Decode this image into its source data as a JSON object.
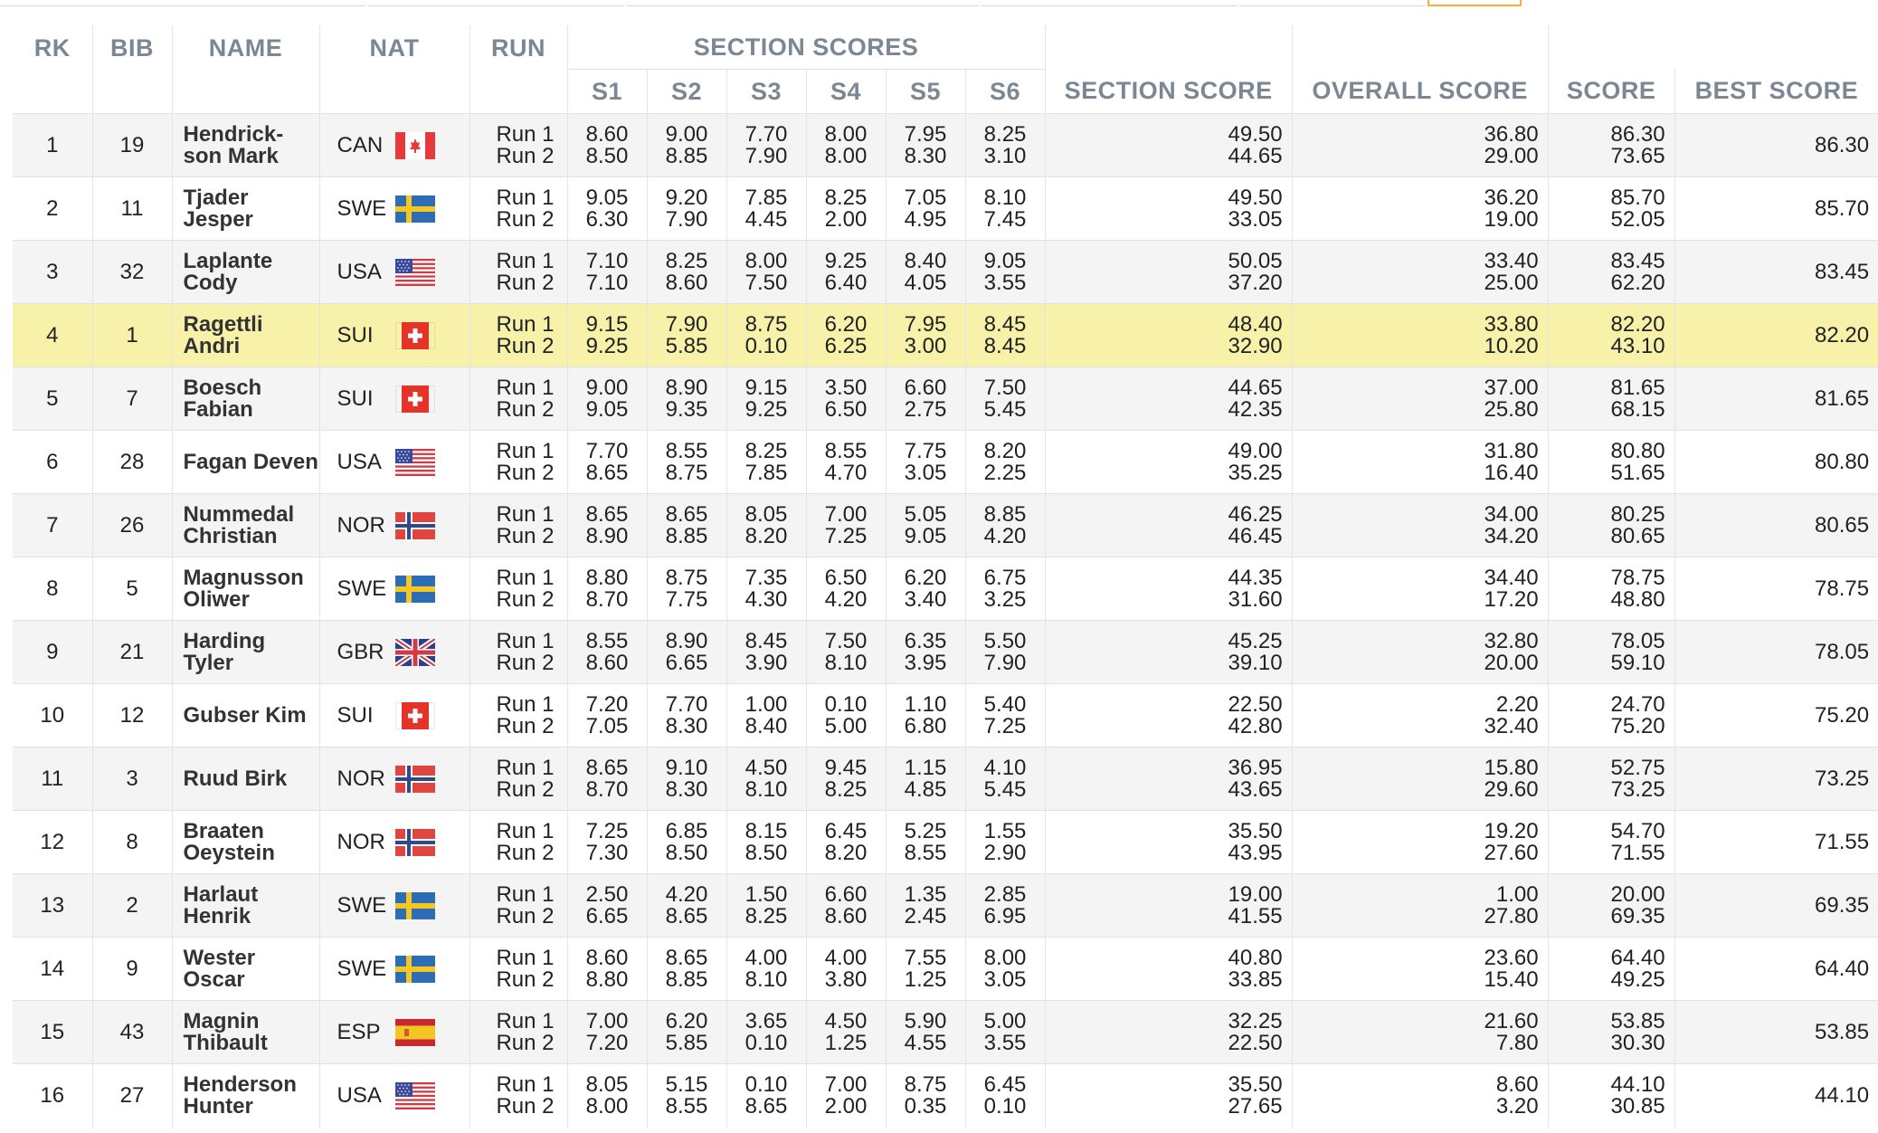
{
  "colors": {
    "highlight_row": "#f7f1a9",
    "header_text": "#7b8794",
    "active_tab": "#f2b233"
  },
  "header": {
    "rk": "RK",
    "bib": "BIB",
    "name": "NAME",
    "nat": "NAT",
    "run": "RUN",
    "section_scores": "SECTION SCORES",
    "s1": "S1",
    "s2": "S2",
    "s3": "S3",
    "s4": "S4",
    "s5": "S5",
    "s6": "S6",
    "section_score": "SECTION SCORE",
    "overall_score": "OVERALL SCORE",
    "score": "SCORE",
    "best_score": "BEST SCORE"
  },
  "run_labels": [
    "Run 1",
    "Run 2"
  ],
  "rows": [
    {
      "rk": "1",
      "bib": "19",
      "name": "Hendrick-son Mark",
      "nat": "CAN",
      "flag": "can-flag-icon",
      "r1": [
        "8.60",
        "9.00",
        "7.70",
        "8.00",
        "7.95",
        "8.25",
        "49.50",
        "36.80",
        "86.30"
      ],
      "r2": [
        "8.50",
        "8.85",
        "7.90",
        "8.00",
        "8.30",
        "3.10",
        "44.65",
        "29.00",
        "73.65"
      ],
      "best": "86.30"
    },
    {
      "rk": "2",
      "bib": "11",
      "name": "Tjader Jesper",
      "nat": "SWE",
      "flag": "swe-flag-icon",
      "r1": [
        "9.05",
        "9.20",
        "7.85",
        "8.25",
        "7.05",
        "8.10",
        "49.50",
        "36.20",
        "85.70"
      ],
      "r2": [
        "6.30",
        "7.90",
        "4.45",
        "2.00",
        "4.95",
        "7.45",
        "33.05",
        "19.00",
        "52.05"
      ],
      "best": "85.70"
    },
    {
      "rk": "3",
      "bib": "32",
      "name": "Laplante Cody",
      "nat": "USA",
      "flag": "usa-flag-icon",
      "r1": [
        "7.10",
        "8.25",
        "8.00",
        "9.25",
        "8.40",
        "9.05",
        "50.05",
        "33.40",
        "83.45"
      ],
      "r2": [
        "7.10",
        "8.60",
        "7.50",
        "6.40",
        "4.05",
        "3.55",
        "37.20",
        "25.00",
        "62.20"
      ],
      "best": "83.45"
    },
    {
      "rk": "4",
      "bib": "1",
      "name": "Ragettli Andri",
      "nat": "SUI",
      "flag": "sui-flag-icon",
      "highlight": true,
      "r1": [
        "9.15",
        "7.90",
        "8.75",
        "6.20",
        "7.95",
        "8.45",
        "48.40",
        "33.80",
        "82.20"
      ],
      "r2": [
        "9.25",
        "5.85",
        "0.10",
        "6.25",
        "3.00",
        "8.45",
        "32.90",
        "10.20",
        "43.10"
      ],
      "best": "82.20"
    },
    {
      "rk": "5",
      "bib": "7",
      "name": "Boesch Fabian",
      "nat": "SUI",
      "flag": "sui-flag-icon",
      "r1": [
        "9.00",
        "8.90",
        "9.15",
        "3.50",
        "6.60",
        "7.50",
        "44.65",
        "37.00",
        "81.65"
      ],
      "r2": [
        "9.05",
        "9.35",
        "9.25",
        "6.50",
        "2.75",
        "5.45",
        "42.35",
        "25.80",
        "68.15"
      ],
      "best": "81.65"
    },
    {
      "rk": "6",
      "bib": "28",
      "name": "Fagan Deven",
      "nat": "USA",
      "flag": "usa-flag-icon",
      "r1": [
        "7.70",
        "8.55",
        "8.25",
        "8.55",
        "7.75",
        "8.20",
        "49.00",
        "31.80",
        "80.80"
      ],
      "r2": [
        "8.65",
        "8.75",
        "7.85",
        "4.70",
        "3.05",
        "2.25",
        "35.25",
        "16.40",
        "51.65"
      ],
      "best": "80.80"
    },
    {
      "rk": "7",
      "bib": "26",
      "name": "Nummedal Christian",
      "nat": "NOR",
      "flag": "nor-flag-icon",
      "r1": [
        "8.65",
        "8.65",
        "8.05",
        "7.00",
        "5.05",
        "8.85",
        "46.25",
        "34.00",
        "80.25"
      ],
      "r2": [
        "8.90",
        "8.85",
        "8.20",
        "7.25",
        "9.05",
        "4.20",
        "46.45",
        "34.20",
        "80.65"
      ],
      "best": "80.65"
    },
    {
      "rk": "8",
      "bib": "5",
      "name": "Magnusson Oliwer",
      "nat": "SWE",
      "flag": "swe-flag-icon",
      "r1": [
        "8.80",
        "8.75",
        "7.35",
        "6.50",
        "6.20",
        "6.75",
        "44.35",
        "34.40",
        "78.75"
      ],
      "r2": [
        "8.70",
        "7.75",
        "4.30",
        "4.20",
        "3.40",
        "3.25",
        "31.60",
        "17.20",
        "48.80"
      ],
      "best": "78.75"
    },
    {
      "rk": "9",
      "bib": "21",
      "name": "Harding Tyler",
      "nat": "GBR",
      "flag": "gbr-flag-icon",
      "r1": [
        "8.55",
        "8.90",
        "8.45",
        "7.50",
        "6.35",
        "5.50",
        "45.25",
        "32.80",
        "78.05"
      ],
      "r2": [
        "8.60",
        "6.65",
        "3.90",
        "8.10",
        "3.95",
        "7.90",
        "39.10",
        "20.00",
        "59.10"
      ],
      "best": "78.05"
    },
    {
      "rk": "10",
      "bib": "12",
      "name": "Gubser Kim",
      "nat": "SUI",
      "flag": "sui-flag-icon",
      "r1": [
        "7.20",
        "7.70",
        "1.00",
        "0.10",
        "1.10",
        "5.40",
        "22.50",
        "2.20",
        "24.70"
      ],
      "r2": [
        "7.05",
        "8.30",
        "8.40",
        "5.00",
        "6.80",
        "7.25",
        "42.80",
        "32.40",
        "75.20"
      ],
      "best": "75.20"
    },
    {
      "rk": "11",
      "bib": "3",
      "name": "Ruud Birk",
      "nat": "NOR",
      "flag": "nor-flag-icon",
      "r1": [
        "8.65",
        "9.10",
        "4.50",
        "9.45",
        "1.15",
        "4.10",
        "36.95",
        "15.80",
        "52.75"
      ],
      "r2": [
        "8.70",
        "8.30",
        "8.10",
        "8.25",
        "4.85",
        "5.45",
        "43.65",
        "29.60",
        "73.25"
      ],
      "best": "73.25"
    },
    {
      "rk": "12",
      "bib": "8",
      "name": "Braaten Oeystein",
      "nat": "NOR",
      "flag": "nor-flag-icon",
      "r1": [
        "7.25",
        "6.85",
        "8.15",
        "6.45",
        "5.25",
        "1.55",
        "35.50",
        "19.20",
        "54.70"
      ],
      "r2": [
        "7.30",
        "8.50",
        "8.50",
        "8.20",
        "8.55",
        "2.90",
        "43.95",
        "27.60",
        "71.55"
      ],
      "best": "71.55"
    },
    {
      "rk": "13",
      "bib": "2",
      "name": "Harlaut Henrik",
      "nat": "SWE",
      "flag": "swe-flag-icon",
      "r1": [
        "2.50",
        "4.20",
        "1.50",
        "6.60",
        "1.35",
        "2.85",
        "19.00",
        "1.00",
        "20.00"
      ],
      "r2": [
        "6.65",
        "8.65",
        "8.25",
        "8.60",
        "2.45",
        "6.95",
        "41.55",
        "27.80",
        "69.35"
      ],
      "best": "69.35"
    },
    {
      "rk": "14",
      "bib": "9",
      "name": "Wester Oscar",
      "nat": "SWE",
      "flag": "swe-flag-icon",
      "r1": [
        "8.60",
        "8.65",
        "4.00",
        "4.00",
        "7.55",
        "8.00",
        "40.80",
        "23.60",
        "64.40"
      ],
      "r2": [
        "8.80",
        "8.85",
        "8.10",
        "3.80",
        "1.25",
        "3.05",
        "33.85",
        "15.40",
        "49.25"
      ],
      "best": "64.40"
    },
    {
      "rk": "15",
      "bib": "43",
      "name": "Magnin Thibault",
      "nat": "ESP",
      "flag": "esp-flag-icon",
      "r1": [
        "7.00",
        "6.20",
        "3.65",
        "4.50",
        "5.90",
        "5.00",
        "32.25",
        "21.60",
        "53.85"
      ],
      "r2": [
        "7.20",
        "5.85",
        "0.10",
        "1.25",
        "4.55",
        "3.55",
        "22.50",
        "7.80",
        "30.30"
      ],
      "best": "53.85"
    },
    {
      "rk": "16",
      "bib": "27",
      "name": "Henderson Hunter",
      "nat": "USA",
      "flag": "usa-flag-icon",
      "r1": [
        "8.05",
        "5.15",
        "0.10",
        "7.00",
        "8.75",
        "6.45",
        "35.50",
        "8.60",
        "44.10"
      ],
      "r2": [
        "8.00",
        "8.55",
        "8.65",
        "2.00",
        "0.35",
        "0.10",
        "27.65",
        "3.20",
        "30.85"
      ],
      "best": "44.10"
    }
  ]
}
